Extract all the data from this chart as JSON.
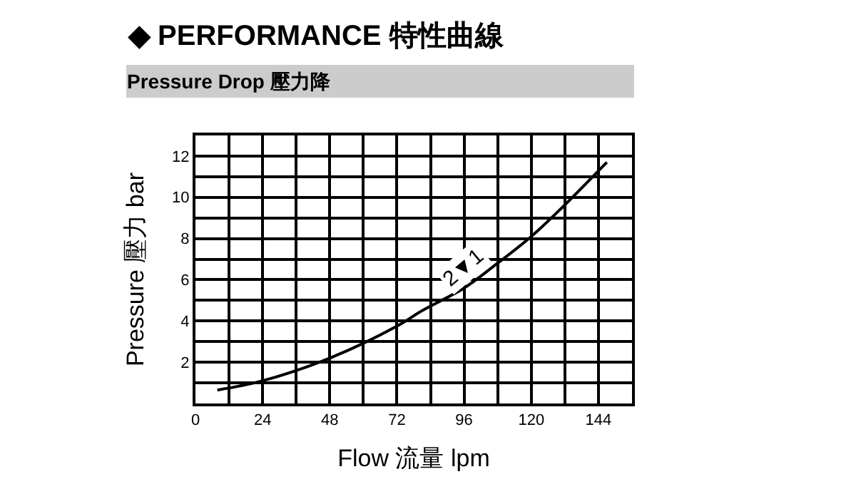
{
  "chart_data": {
    "type": "line",
    "title": "◆ PERFORMANCE 特性曲線",
    "subtitle": "Pressure Drop 壓力降",
    "xlabel": "Flow 流量 lpm",
    "ylabel": "Pressure 壓力 bar",
    "x": [
      7.8,
      24,
      48,
      72,
      81,
      96,
      106.5,
      120,
      131,
      147
    ],
    "series": [
      {
        "color": "#000000",
        "values": [
          0.65,
          1.1,
          2.2,
          3.75,
          4.5,
          5.6,
          6.65,
          8.1,
          9.5,
          11.7
        ]
      }
    ],
    "annotations": [
      {
        "text": "2▼1",
        "x": 96,
        "y": 6.6
      }
    ],
    "xlim": [
      0,
      156
    ],
    "xticks": [
      0,
      {
        "value": 12,
        "label": null
      },
      24,
      {
        "value": 36,
        "label": null
      },
      48,
      {
        "value": 60,
        "label": null
      },
      72,
      {
        "value": 84,
        "label": null
      },
      96,
      {
        "value": 108,
        "label": null
      },
      120,
      {
        "value": 132,
        "label": null
      },
      144
    ],
    "ylim": [
      0,
      13
    ],
    "yticks": [
      {
        "value": 1,
        "label": null
      },
      2,
      {
        "value": 3,
        "label": null
      },
      4,
      {
        "value": 5,
        "label": null
      },
      6,
      {
        "value": 7,
        "label": null
      },
      8,
      {
        "value": 9,
        "label": null
      },
      10,
      {
        "value": 11,
        "label": null
      },
      12
    ],
    "grid": true,
    "marker": "none",
    "line_style": "solid"
  }
}
